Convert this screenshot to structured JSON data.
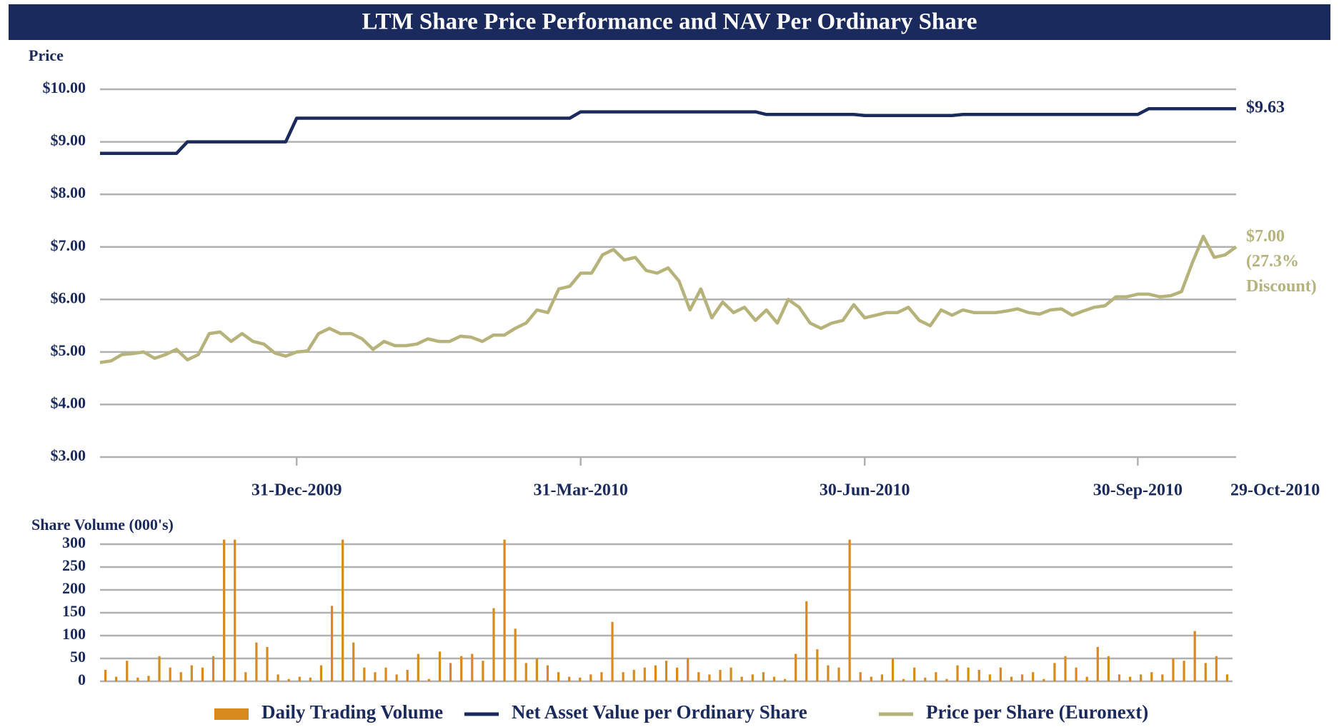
{
  "chart_data": [
    {
      "type": "line",
      "title": "LTM Share Price Performance and NAV Per Ordinary Share",
      "ylabel": "Price",
      "ylim": [
        3,
        10
      ],
      "yticks": [
        {
          "value": 3,
          "label": "$3.00"
        },
        {
          "value": 4,
          "label": "$4.00"
        },
        {
          "value": 5,
          "label": "$5.00"
        },
        {
          "value": 6,
          "label": "$6.00"
        },
        {
          "value": 7,
          "label": "$7.00"
        },
        {
          "value": 8,
          "label": "$8.00"
        },
        {
          "value": 9,
          "label": "$9.00"
        },
        {
          "value": 10,
          "label": "$10.00"
        }
      ],
      "grid": true,
      "categories": [
        null,
        null,
        null,
        null,
        null,
        null,
        null,
        null,
        null,
        null,
        null,
        null,
        null,
        null,
        null,
        null,
        null,
        null,
        "31-Dec-2009",
        null,
        null,
        null,
        null,
        null,
        null,
        null,
        null,
        null,
        null,
        null,
        null,
        null,
        null,
        null,
        null,
        null,
        null,
        null,
        null,
        null,
        null,
        null,
        null,
        null,
        "31-Mar-2010",
        null,
        null,
        null,
        null,
        null,
        null,
        null,
        null,
        null,
        null,
        null,
        null,
        null,
        null,
        null,
        null,
        null,
        null,
        null,
        null,
        null,
        null,
        null,
        null,
        null,
        "30-Jun-2010",
        null,
        null,
        null,
        null,
        null,
        null,
        null,
        null,
        null,
        null,
        null,
        null,
        null,
        null,
        null,
        null,
        null,
        null,
        null,
        null,
        null,
        null,
        null,
        null,
        "30-Sep-2010",
        null,
        null,
        null,
        null,
        null,
        null,
        null,
        null,
        "29-Oct-2010"
      ],
      "series": [
        {
          "name": "Net Asset Value per Ordinary Share",
          "color": "#1b2a5c",
          "values": [
            8.78,
            8.78,
            8.78,
            8.78,
            8.78,
            8.78,
            8.78,
            8.78,
            9.0,
            9.0,
            9.0,
            9.0,
            9.0,
            9.0,
            9.0,
            9.0,
            9.0,
            9.0,
            9.45,
            9.45,
            9.45,
            9.45,
            9.45,
            9.45,
            9.45,
            9.45,
            9.45,
            9.45,
            9.45,
            9.45,
            9.45,
            9.45,
            9.45,
            9.45,
            9.45,
            9.45,
            9.45,
            9.45,
            9.45,
            9.45,
            9.45,
            9.45,
            9.45,
            9.45,
            9.57,
            9.57,
            9.57,
            9.57,
            9.57,
            9.57,
            9.57,
            9.57,
            9.57,
            9.57,
            9.57,
            9.57,
            9.57,
            9.57,
            9.57,
            9.57,
            9.57,
            9.52,
            9.52,
            9.52,
            9.52,
            9.52,
            9.52,
            9.52,
            9.52,
            9.52,
            9.5,
            9.5,
            9.5,
            9.5,
            9.5,
            9.5,
            9.5,
            9.5,
            9.5,
            9.52,
            9.52,
            9.52,
            9.52,
            9.52,
            9.52,
            9.52,
            9.52,
            9.52,
            9.52,
            9.52,
            9.52,
            9.52,
            9.52,
            9.52,
            9.52,
            9.52,
            9.63,
            9.63,
            9.63,
            9.63,
            9.63,
            9.63,
            9.63,
            9.63,
            9.63
          ]
        },
        {
          "name": "Price per Share (Euronext)",
          "color": "#b5b27a",
          "values": [
            4.8,
            4.83,
            4.95,
            4.97,
            5.0,
            4.88,
            4.95,
            5.05,
            4.85,
            4.95,
            5.35,
            5.38,
            5.2,
            5.35,
            5.2,
            5.15,
            4.98,
            4.92,
            5.0,
            5.02,
            5.35,
            5.45,
            5.35,
            5.35,
            5.25,
            5.05,
            5.2,
            5.12,
            5.12,
            5.15,
            5.25,
            5.2,
            5.2,
            5.3,
            5.28,
            5.2,
            5.32,
            5.32,
            5.45,
            5.55,
            5.8,
            5.75,
            6.2,
            6.25,
            6.5,
            6.5,
            6.85,
            6.95,
            6.75,
            6.8,
            6.55,
            6.5,
            6.6,
            6.35,
            5.8,
            6.2,
            5.65,
            5.95,
            5.75,
            5.85,
            5.6,
            5.8,
            5.55,
            6.0,
            5.85,
            5.55,
            5.45,
            5.55,
            5.6,
            5.9,
            5.65,
            5.7,
            5.75,
            5.75,
            5.85,
            5.6,
            5.5,
            5.8,
            5.7,
            5.8,
            5.75,
            5.75,
            5.75,
            5.78,
            5.82,
            5.75,
            5.72,
            5.8,
            5.82,
            5.7,
            5.78,
            5.85,
            5.88,
            6.05,
            6.05,
            6.1,
            6.1,
            6.05,
            6.07,
            6.15,
            6.7,
            7.2,
            6.8,
            6.85,
            7.0
          ]
        }
      ],
      "annotations": [
        {
          "lines": [
            "$9.63"
          ]
        },
        {
          "lines": [
            "$7.00",
            "(27.3%",
            "Discount)"
          ]
        }
      ]
    },
    {
      "type": "bar",
      "ylabel": "Share Volume (000's)",
      "ylim": [
        0,
        300
      ],
      "yticks": [
        0,
        50,
        100,
        150,
        200,
        250,
        300
      ],
      "grid": true,
      "series": [
        {
          "name": "Daily Trading Volume",
          "color": "#d88a1e",
          "values": [
            25,
            10,
            45,
            8,
            12,
            55,
            30,
            20,
            35,
            30,
            55,
            310,
            310,
            20,
            85,
            75,
            15,
            5,
            10,
            8,
            35,
            165,
            310,
            85,
            30,
            20,
            30,
            15,
            25,
            60,
            5,
            65,
            40,
            55,
            60,
            45,
            160,
            310,
            115,
            40,
            50,
            35,
            20,
            10,
            8,
            15,
            20,
            130,
            20,
            25,
            30,
            35,
            45,
            30,
            50,
            20,
            15,
            25,
            30,
            10,
            15,
            20,
            10,
            5,
            60,
            175,
            70,
            35,
            30,
            310,
            20,
            10,
            15,
            50,
            5,
            30,
            8,
            20,
            5,
            35,
            30,
            25,
            15,
            30,
            10,
            15,
            20,
            5,
            40,
            55,
            30,
            10,
            75,
            55,
            15,
            10,
            15,
            20,
            15,
            50,
            45,
            110,
            40,
            55,
            15
          ]
        }
      ]
    }
  ]
}
